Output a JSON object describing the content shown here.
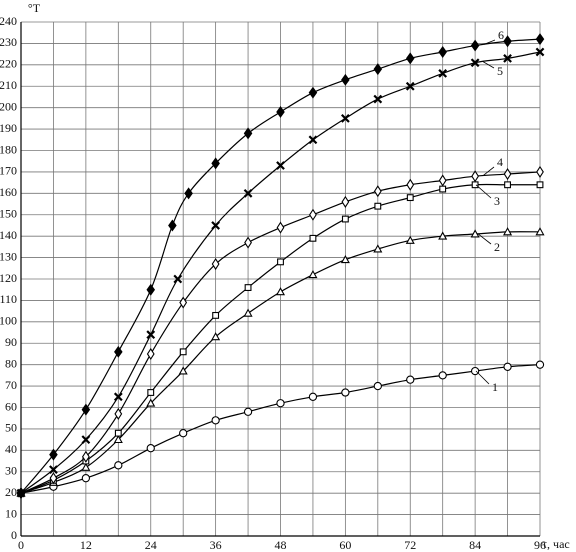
{
  "chart_data": {
    "type": "line",
    "y_label": "°T",
    "x_label": "τ, час",
    "xlim": [
      0,
      96
    ],
    "xticks": [
      0,
      12,
      24,
      36,
      48,
      60,
      72,
      84,
      96
    ],
    "x_minor_grid": [
      6,
      18,
      30,
      42,
      54,
      66,
      78,
      90
    ],
    "ylim": [
      0,
      240
    ],
    "yticks": [
      0,
      10,
      20,
      30,
      40,
      50,
      60,
      70,
      80,
      90,
      100,
      110,
      120,
      130,
      140,
      150,
      160,
      170,
      180,
      190,
      200,
      210,
      220,
      230,
      240
    ],
    "grid": true,
    "series": [
      {
        "name": "1",
        "color": "#000000",
        "marker": "circle",
        "x": [
          0,
          6,
          12,
          18,
          24,
          30,
          36,
          42,
          48,
          54,
          60,
          66,
          72,
          78,
          84,
          90,
          96
        ],
        "values": [
          20,
          23,
          27,
          33,
          41,
          48,
          54,
          58,
          62,
          65,
          67,
          70,
          73,
          75,
          77,
          79,
          80
        ]
      },
      {
        "name": "2",
        "color": "#000000",
        "marker": "triangle",
        "x": [
          0,
          6,
          12,
          18,
          24,
          30,
          36,
          42,
          48,
          54,
          60,
          66,
          72,
          78,
          84,
          90,
          96
        ],
        "values": [
          20,
          25,
          32,
          45,
          62,
          77,
          93,
          104,
          114,
          122,
          129,
          134,
          138,
          140,
          141,
          142,
          142
        ]
      },
      {
        "name": "3",
        "color": "#000000",
        "marker": "square",
        "x": [
          0,
          6,
          12,
          18,
          24,
          30,
          36,
          42,
          48,
          54,
          60,
          66,
          72,
          78,
          84,
          90,
          96
        ],
        "values": [
          20,
          26,
          35,
          48,
          67,
          86,
          103,
          116,
          128,
          139,
          148,
          154,
          158,
          162,
          164,
          164,
          164
        ]
      },
      {
        "name": "4",
        "color": "#000000",
        "marker": "diamond",
        "x": [
          0,
          6,
          12,
          18,
          24,
          30,
          36,
          42,
          48,
          54,
          60,
          66,
          72,
          78,
          84,
          90,
          96
        ],
        "values": [
          20,
          27,
          37,
          57,
          85,
          109,
          127,
          137,
          144,
          150,
          156,
          161,
          164,
          166,
          168,
          169,
          170
        ]
      },
      {
        "name": "5",
        "color": "#000000",
        "marker": "cross",
        "x": [
          0,
          6,
          12,
          18,
          24,
          29,
          36,
          42,
          48,
          54,
          60,
          66,
          72,
          78,
          84,
          90,
          96
        ],
        "values": [
          20,
          31,
          45,
          65,
          94,
          120,
          145,
          160,
          173,
          185,
          195,
          204,
          210,
          216,
          221,
          223,
          226
        ]
      },
      {
        "name": "6",
        "color": "#000000",
        "marker": "filled-diamond",
        "x": [
          0,
          6,
          12,
          18,
          24,
          28,
          31,
          36,
          42,
          48,
          54,
          60,
          66,
          72,
          78,
          84,
          90,
          96
        ],
        "values": [
          20,
          38,
          59,
          86,
          115,
          145,
          160,
          174,
          188,
          198,
          207,
          213,
          218,
          223,
          226,
          229,
          231,
          232
        ]
      }
    ]
  }
}
